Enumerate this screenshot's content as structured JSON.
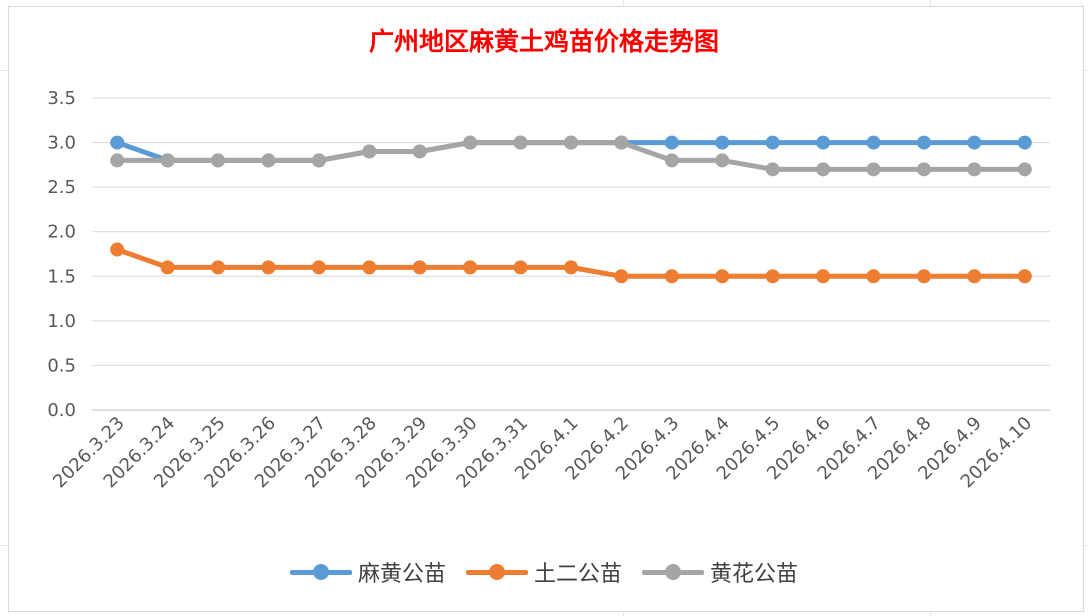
{
  "chart_data": {
    "type": "line",
    "title": "广州地区麻黄土鸡苗价格走势图",
    "categories": [
      "2026.3.23",
      "2026.3.24",
      "2026.3.25",
      "2026.3.26",
      "2026.3.27",
      "2026.3.28",
      "2026.3.29",
      "2026.3.30",
      "2026.3.31",
      "2026.4.1",
      "2026.4.2",
      "2026.4.3",
      "2026.4.4",
      "2026.4.5",
      "2026.4.6",
      "2026.4.7",
      "2026.4.8",
      "2026.4.9",
      "2026.4.10"
    ],
    "yticks": [
      "0.0",
      "0.5",
      "1.0",
      "1.5",
      "2.0",
      "2.5",
      "3.0",
      "3.5"
    ],
    "ylim": [
      0,
      3.5
    ],
    "grid": true,
    "legend_position": "bottom",
    "series": [
      {
        "name": "麻黄公苗",
        "color": "#5b9bd5",
        "values": [
          3.0,
          2.8,
          2.8,
          2.8,
          2.8,
          2.9,
          2.9,
          3.0,
          3.0,
          3.0,
          3.0,
          3.0,
          3.0,
          3.0,
          3.0,
          3.0,
          3.0,
          3.0,
          3.0
        ]
      },
      {
        "name": "土二公苗",
        "color": "#ed7d31",
        "values": [
          1.8,
          1.6,
          1.6,
          1.6,
          1.6,
          1.6,
          1.6,
          1.6,
          1.6,
          1.6,
          1.5,
          1.5,
          1.5,
          1.5,
          1.5,
          1.5,
          1.5,
          1.5,
          1.5
        ]
      },
      {
        "name": "黄花公苗",
        "color": "#a5a5a5",
        "values": [
          2.8,
          2.8,
          2.8,
          2.8,
          2.8,
          2.9,
          2.9,
          3.0,
          3.0,
          3.0,
          3.0,
          2.8,
          2.8,
          2.7,
          2.7,
          2.7,
          2.7,
          2.7,
          2.7
        ]
      }
    ]
  }
}
